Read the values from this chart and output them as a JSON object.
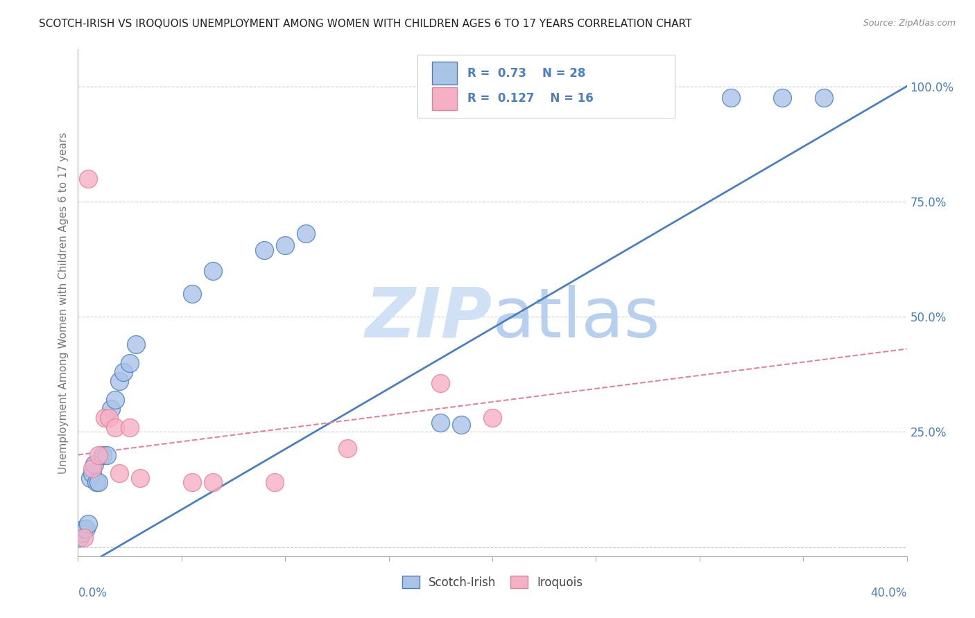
{
  "title": "SCOTCH-IRISH VS IROQUOIS UNEMPLOYMENT AMONG WOMEN WITH CHILDREN AGES 6 TO 17 YEARS CORRELATION CHART",
  "source": "Source: ZipAtlas.com",
  "ylabel": "Unemployment Among Women with Children Ages 6 to 17 years",
  "xmin": 0.0,
  "xmax": 0.4,
  "ymin": -0.02,
  "ymax": 1.08,
  "yticks": [
    0.0,
    0.25,
    0.5,
    0.75,
    1.0
  ],
  "ytick_labels": [
    "",
    "25.0%",
    "50.0%",
    "75.0%",
    "100.0%"
  ],
  "scotch_irish_R": 0.73,
  "scotch_irish_N": 28,
  "iroquois_R": 0.127,
  "iroquois_N": 16,
  "scotch_irish_color": "#aac4e8",
  "iroquois_color": "#f5b0c5",
  "scotch_irish_line_color": "#4a7fc1",
  "iroquois_line_color": "#e8809a",
  "legend_text_color": "#4a7fc1",
  "watermark_color": "#d0e0f5",
  "si_x": [
    0.001,
    0.002,
    0.003,
    0.004,
    0.005,
    0.006,
    0.007,
    0.008,
    0.009,
    0.01,
    0.012,
    0.014,
    0.016,
    0.018,
    0.02,
    0.022,
    0.025,
    0.028,
    0.055,
    0.065,
    0.09,
    0.1,
    0.11,
    0.175,
    0.185,
    0.315,
    0.34,
    0.36
  ],
  "si_y": [
    0.02,
    0.03,
    0.04,
    0.04,
    0.05,
    0.15,
    0.16,
    0.18,
    0.14,
    0.14,
    0.2,
    0.2,
    0.3,
    0.32,
    0.36,
    0.38,
    0.4,
    0.44,
    0.55,
    0.6,
    0.645,
    0.655,
    0.68,
    0.27,
    0.265,
    0.975,
    0.975,
    0.975
  ],
  "iq_x": [
    0.003,
    0.005,
    0.007,
    0.01,
    0.013,
    0.015,
    0.018,
    0.02,
    0.025,
    0.03,
    0.055,
    0.065,
    0.095,
    0.13,
    0.175,
    0.2
  ],
  "iq_y": [
    0.02,
    0.8,
    0.17,
    0.2,
    0.28,
    0.28,
    0.26,
    0.16,
    0.26,
    0.15,
    0.14,
    0.14,
    0.14,
    0.215,
    0.355,
    0.28
  ]
}
